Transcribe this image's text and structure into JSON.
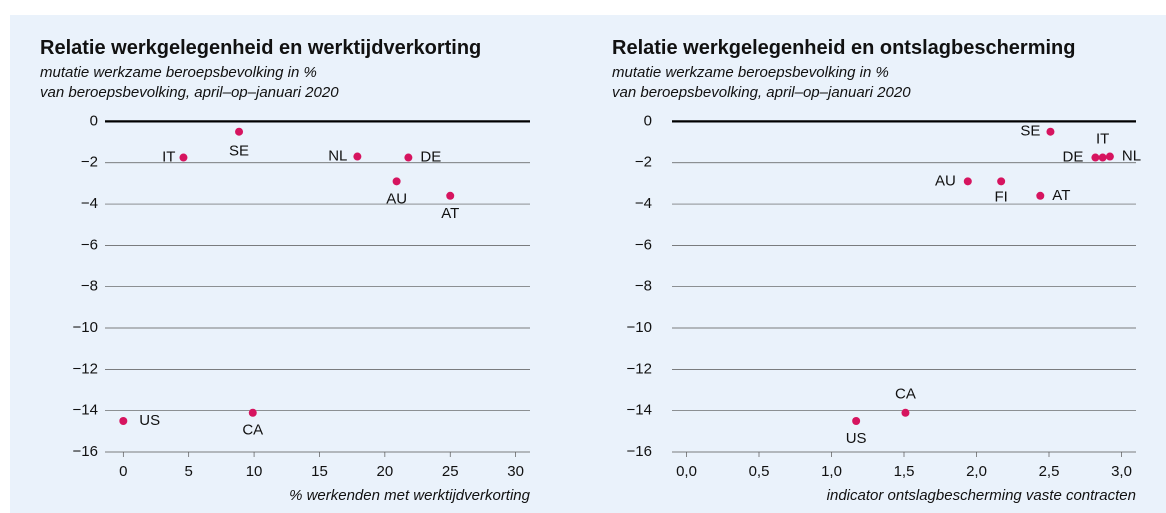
{
  "chart_data": [
    {
      "type": "scatter",
      "title": "Relatie werkgelegenheid en werktijdverkorting",
      "subtitle": [
        "mutatie werkzame beroepsbevolking in %",
        "van beroepsbevolking, april–op–januari 2020"
      ],
      "xlabel": "% werkenden met werktijdverkorting",
      "labels": [
        "IT",
        "SE",
        "NL",
        "DE",
        "AU",
        "AT",
        "US",
        "CA"
      ],
      "x": [
        4.6,
        8.85,
        17.9,
        21.8,
        20.9,
        25.0,
        0.0,
        9.9
      ],
      "values": [
        -1.75,
        -0.5,
        -1.7,
        -1.75,
        -2.9,
        -3.6,
        -14.5,
        -14.1
      ],
      "color": "#d6145f",
      "xlim": [
        -1.4,
        31.1
      ],
      "ylim": [
        -16,
        0.6
      ],
      "xticks": [
        0,
        5,
        10,
        15,
        20,
        25,
        30
      ],
      "yticks": [
        0,
        {
          "value": -2,
          "label": "−2"
        },
        {
          "value": -4,
          "label": "−4"
        },
        {
          "value": -6,
          "label": "−6"
        },
        {
          "value": -8,
          "label": "−8"
        },
        {
          "value": -10,
          "label": "−10"
        },
        {
          "value": -12,
          "label": "−12"
        },
        {
          "value": -14,
          "label": "−14"
        },
        {
          "value": -16,
          "label": "−16"
        }
      ],
      "grid": true
    },
    {
      "type": "scatter",
      "title": "Relatie werkgelegenheid en ontslagbescherming",
      "subtitle": [
        "mutatie werkzame beroepsbevolking in %",
        "van beroepsbevolking, april–op–januari 2020"
      ],
      "xlabel": "indicator ontslagbescherming vaste contracten",
      "labels": [
        "SE",
        "IT",
        "DE",
        "NL",
        "AU",
        "FI",
        "AT",
        "US",
        "CA"
      ],
      "x": [
        2.51,
        2.87,
        2.82,
        2.92,
        1.94,
        2.17,
        2.44,
        1.17,
        1.51
      ],
      "values": [
        -0.5,
        -1.75,
        -1.75,
        -1.7,
        -2.9,
        -2.9,
        -3.6,
        -14.5,
        -14.1
      ],
      "color": "#d6145f",
      "xlim": [
        -0.1,
        3.1
      ],
      "ylim": [
        -16,
        0.6
      ],
      "xticks": [
        {
          "value": 0,
          "label": "0,0"
        },
        {
          "value": 0.5,
          "label": "0,5"
        },
        {
          "value": 1,
          "label": "1,0"
        },
        {
          "value": 1.5,
          "label": "1,5"
        },
        {
          "value": 2,
          "label": "2,0"
        },
        {
          "value": 2.5,
          "label": "2,5"
        },
        {
          "value": 3,
          "label": "3,0"
        }
      ],
      "yticks": [
        0,
        {
          "value": -2,
          "label": "−2"
        },
        {
          "value": -4,
          "label": "−4"
        },
        {
          "value": -6,
          "label": "−6"
        },
        {
          "value": -8,
          "label": "−8"
        },
        {
          "value": -10,
          "label": "−10"
        },
        {
          "value": -12,
          "label": "−12"
        },
        {
          "value": -14,
          "label": "−14"
        },
        {
          "value": -16,
          "label": "−16"
        }
      ],
      "grid": true
    }
  ]
}
